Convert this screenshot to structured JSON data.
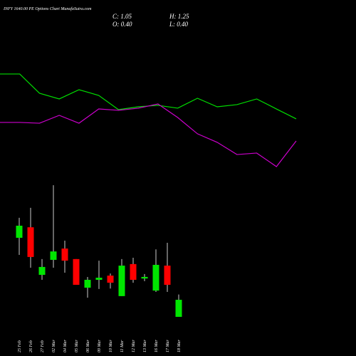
{
  "chart_data": [
    {
      "type": "candlestick",
      "title": "INFY 1640.00 PE Options Chart MunafaSutra.com",
      "ohlc_labels": [
        "C: 1.05",
        "H: 1.25",
        "O: 0.40",
        "L: 0.40"
      ],
      "categories": [
        "25 Feb",
        "26 Feb",
        "27 Feb",
        "02 Mar",
        "04 Mar",
        "05 Mar",
        "06 Mar",
        "09 Mar",
        "10 Mar",
        "11 Mar",
        "12 Mar",
        "13 Mar",
        "16 Mar",
        "17 Mar",
        "18 Mar"
      ],
      "open": [
        3.41,
        3.81,
        2.0,
        2.57,
        3.0,
        2.6,
        1.51,
        1.81,
        1.97,
        1.19,
        2.41,
        1.86,
        1.4,
        2.35,
        0.4
      ],
      "high": [
        4.17,
        4.55,
        2.6,
        5.41,
        3.3,
        2.6,
        1.92,
        2.54,
        2.05,
        2.6,
        2.65,
        2.03,
        2.97,
        3.22,
        1.25
      ],
      "low": [
        2.76,
        2.27,
        1.81,
        2.27,
        2.08,
        1.62,
        1.13,
        1.46,
        1.48,
        1.19,
        1.7,
        1.76,
        1.35,
        1.35,
        0.4
      ],
      "close": [
        3.87,
        2.68,
        2.3,
        2.89,
        2.54,
        1.62,
        1.81,
        1.89,
        1.7,
        2.35,
        1.81,
        1.92,
        2.38,
        1.62,
        1.05
      ],
      "up_color": "#00e600",
      "down_color": "#ff0000",
      "ylim": [
        0,
        6
      ]
    },
    {
      "type": "line",
      "x": [
        0,
        1,
        2,
        3,
        4,
        5,
        6,
        7,
        8,
        9,
        10,
        11,
        12,
        13,
        14,
        15
      ],
      "xlim": [
        0,
        15
      ],
      "ylim": [
        0,
        100
      ],
      "series": [
        {
          "color": "#00dd00",
          "values": [
            91.3,
            91.3,
            74.4,
            69.4,
            77.5,
            72.5,
            60.0,
            62.5,
            63.8,
            61.3,
            70.0,
            62.5,
            64.4,
            69.4,
            60.6,
            51.9
          ]
        },
        {
          "color": "#cc00cc",
          "values": [
            48.8,
            48.8,
            48.1,
            55.0,
            48.1,
            60.6,
            59.4,
            61.3,
            65.0,
            53.1,
            38.8,
            31.3,
            20.6,
            21.9,
            10.0,
            32.5
          ]
        }
      ]
    }
  ]
}
